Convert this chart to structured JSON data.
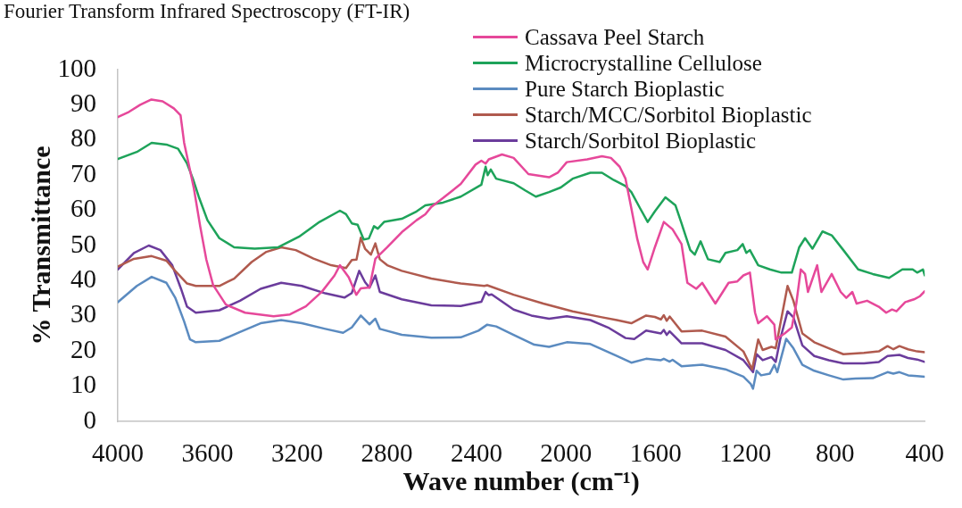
{
  "chart_data": {
    "type": "line",
    "title": "Fourier Transform Infrared Spectroscopy (FT-IR)",
    "xlabel": "Wave number (cm⁻¹)",
    "ylabel": "% Transmittance",
    "xlim": [
      4000,
      400
    ],
    "xticks": [
      4000,
      3600,
      3200,
      2800,
      2400,
      2000,
      1600,
      1200,
      800,
      400
    ],
    "ylim": [
      0,
      100
    ],
    "yticks": [
      0,
      10,
      20,
      30,
      40,
      50,
      60,
      70,
      80,
      90,
      100
    ],
    "legend": "top right",
    "series": [
      {
        "name": "Cassava Peel Starch",
        "color": "#e6489a",
        "x": [
          4000,
          3950,
          3900,
          3850,
          3800,
          3750,
          3720,
          3704,
          3661,
          3632,
          3605,
          3575,
          3518,
          3432,
          3305,
          3232,
          3161,
          3089,
          3033,
          3009,
          2970,
          2936,
          2916,
          2877,
          2851,
          2798,
          2733,
          2667,
          2628,
          2601,
          2549,
          2470,
          2404,
          2378,
          2359,
          2345,
          2286,
          2234,
          2168,
          2076,
          2037,
          1997,
          1906,
          1840,
          1800,
          1761,
          1735,
          1709,
          1683,
          1656,
          1636,
          1604,
          1564,
          1525,
          1485,
          1459,
          1419,
          1393,
          1334,
          1275,
          1236,
          1209,
          1180,
          1157,
          1143,
          1104,
          1071,
          1065,
          1025,
          993,
          973,
          953,
          934,
          921,
          880,
          861,
          815,
          775,
          750,
          723,
          704,
          657,
          605,
          572,
          546,
          526,
          487,
          448,
          421,
          400
        ],
        "values": [
          86.5,
          88,
          90,
          91.5,
          91,
          89,
          87,
          79.2,
          66.4,
          55.3,
          46,
          38.8,
          33.2,
          30.9,
          29.9,
          30.4,
          32.7,
          36.9,
          41.5,
          44.4,
          41,
          36,
          37.8,
          38.1,
          46.2,
          49.5,
          53.8,
          57.2,
          58.9,
          61,
          63.5,
          67.5,
          73,
          74.1,
          73.3,
          74.5,
          75.9,
          74.9,
          70.3,
          69.4,
          70.7,
          73.7,
          74.5,
          75.4,
          74.9,
          72.4,
          69,
          60.6,
          52,
          45.3,
          43.2,
          49.5,
          56.7,
          54.6,
          50.4,
          39.4,
          37.7,
          39.4,
          33.5,
          39.4,
          39.8,
          41.5,
          42.3,
          30.9,
          27.9,
          29.9,
          27.5,
          23.3,
          25,
          26.7,
          33.5,
          43.2,
          41.9,
          36.8,
          44.4,
          36.8,
          41.9,
          36.8,
          35.1,
          36.8,
          33.5,
          34.3,
          32.6,
          30.9,
          31.8,
          31.3,
          33.9,
          34.7,
          35.6,
          37
        ]
      },
      {
        "name": "Microcrystalline Cellulose",
        "color": "#1ea35a",
        "x": [
          4000,
          3915,
          3849,
          3783,
          3731,
          3691,
          3665,
          3639,
          3600,
          3547,
          3481,
          3389,
          3284,
          3192,
          3100,
          3009,
          2982,
          2956,
          2930,
          2903,
          2880,
          2857,
          2840,
          2812,
          2733,
          2667,
          2628,
          2549,
          2470,
          2378,
          2359,
          2350,
          2336,
          2312,
          2234,
          2181,
          2135,
          2076,
          2024,
          1971,
          1892,
          1840,
          1787,
          1735,
          1709,
          1670,
          1636,
          1604,
          1557,
          1512,
          1485,
          1446,
          1426,
          1400,
          1367,
          1315,
          1289,
          1236,
          1212,
          1196,
          1180,
          1143,
          1091,
          1039,
          993,
          960,
          934,
          901,
          856,
          815,
          763,
          697,
          632,
          559,
          500,
          454,
          434,
          408,
          400
        ],
        "values": [
          74.6,
          76.6,
          79.2,
          78.7,
          77.5,
          73.3,
          69,
          63.9,
          57.2,
          52.1,
          49.5,
          49.1,
          49.5,
          52.5,
          56.7,
          59.9,
          58.9,
          56.3,
          55.9,
          51.7,
          52,
          55.5,
          54.8,
          56.7,
          57.6,
          59.7,
          61.4,
          62.2,
          63.9,
          67.3,
          72.4,
          70,
          71.6,
          69,
          67.7,
          65.6,
          63.9,
          65.2,
          66.5,
          69,
          70.7,
          70.7,
          68.6,
          66.9,
          65.2,
          60.6,
          56.7,
          59.7,
          63.7,
          61.4,
          56.3,
          48.7,
          47.4,
          51.2,
          46.1,
          45.3,
          47.9,
          48.7,
          50.4,
          47.9,
          48.7,
          44.4,
          43.2,
          42.3,
          42.3,
          49.5,
          52.1,
          49.1,
          54,
          52.9,
          48.7,
          43.2,
          41.9,
          40.8,
          43.2,
          43.2,
          42.3,
          43.2,
          41.5
        ]
      },
      {
        "name": "Pure Starch Bioplastic",
        "color": "#5b8bc0",
        "x": [
          4000,
          3915,
          3849,
          3783,
          3744,
          3704,
          3678,
          3652,
          3547,
          3455,
          3363,
          3271,
          3179,
          3074,
          2995,
          2956,
          2916,
          2877,
          2851,
          2831,
          2733,
          2601,
          2470,
          2391,
          2352,
          2312,
          2234,
          2142,
          2076,
          1997,
          1892,
          1774,
          1709,
          1643,
          1577,
          1564,
          1538,
          1525,
          1485,
          1393,
          1289,
          1209,
          1176,
          1166,
          1150,
          1130,
          1091,
          1071,
          1058,
          1018,
          986,
          946,
          893,
          828,
          763,
          710,
          632,
          566,
          540,
          513,
          474,
          434,
          400
        ],
        "values": [
          33.9,
          38.5,
          41.1,
          39.4,
          35.2,
          28.4,
          23.3,
          22.5,
          22.9,
          25.4,
          27.9,
          28.8,
          27.9,
          26.3,
          25.2,
          26.7,
          30.1,
          27.6,
          29.2,
          26.3,
          24.6,
          23.8,
          23.9,
          25.8,
          27.5,
          27,
          24.6,
          21.8,
          21.2,
          22.5,
          22,
          18.6,
          16.7,
          17.8,
          17.4,
          17.8,
          17,
          17.5,
          15.7,
          16.1,
          14.8,
          12.7,
          10.6,
          9.3,
          14.4,
          13.1,
          13.6,
          16.1,
          14,
          23.5,
          20.8,
          16.1,
          14.4,
          13.1,
          11.9,
          12.2,
          12.3,
          14,
          13.6,
          14,
          13.1,
          12.9,
          12.7
        ]
      },
      {
        "name": "Starch/MCC/Sorbitol Bioplastic",
        "color": "#b05a4e",
        "x": [
          4000,
          3928,
          3849,
          3783,
          3744,
          3691,
          3652,
          3547,
          3481,
          3403,
          3337,
          3271,
          3206,
          3127,
          3048,
          2982,
          2956,
          2935,
          2916,
          2897,
          2871,
          2851,
          2831,
          2798,
          2733,
          2601,
          2470,
          2365,
          2352,
          2234,
          2102,
          1971,
          1840,
          1774,
          1709,
          1643,
          1604,
          1577,
          1564,
          1551,
          1538,
          1485,
          1393,
          1289,
          1209,
          1170,
          1143,
          1123,
          1084,
          1065,
          1045,
          1012,
          986,
          946,
          893,
          828,
          763,
          671,
          605,
          566,
          540,
          513,
          474,
          434,
          400
        ],
        "values": [
          44,
          46.2,
          47,
          45.7,
          42.8,
          39.2,
          38.5,
          38.5,
          40.6,
          45.3,
          48.2,
          49.5,
          48.7,
          46.3,
          44.4,
          43.6,
          45.9,
          46,
          52.2,
          49.1,
          47.4,
          50.6,
          46.1,
          44.4,
          42.8,
          40.6,
          39.2,
          38.5,
          38.7,
          36,
          33.5,
          31.3,
          29.6,
          28.8,
          27.9,
          30.1,
          29.7,
          29,
          30.2,
          28.6,
          29.8,
          25.6,
          25.8,
          24.1,
          19.9,
          14.8,
          23.3,
          20.3,
          21.2,
          20.8,
          27.5,
          38.5,
          34.3,
          25,
          22.5,
          20.8,
          19.1,
          19.5,
          19.9,
          21.4,
          20.5,
          21.4,
          20.5,
          19.9,
          19.7
        ]
      },
      {
        "name": "Starch/Sorbitol Bioplastic",
        "color": "#6b3c9c",
        "x": [
          4000,
          3928,
          3862,
          3810,
          3757,
          3718,
          3691,
          3652,
          3547,
          3455,
          3363,
          3271,
          3179,
          3074,
          2989,
          2956,
          2923,
          2897,
          2877,
          2851,
          2831,
          2733,
          2601,
          2470,
          2378,
          2359,
          2345,
          2332,
          2234,
          2155,
          2076,
          1997,
          1892,
          1813,
          1735,
          1696,
          1643,
          1577,
          1564,
          1551,
          1538,
          1485,
          1393,
          1289,
          1209,
          1166,
          1150,
          1123,
          1084,
          1065,
          1045,
          1012,
          986,
          946,
          893,
          828,
          763,
          671,
          605,
          566,
          513,
          474,
          434,
          400
        ],
        "values": [
          43.2,
          47.9,
          50,
          48.7,
          44.4,
          37.7,
          32.6,
          30.9,
          31.6,
          34.3,
          37.7,
          39.4,
          38.5,
          36.4,
          35.2,
          36.5,
          42.8,
          39.6,
          38,
          41.5,
          36.8,
          34.7,
          33,
          32.8,
          34,
          36.8,
          35.9,
          36.1,
          31.8,
          30.1,
          29.2,
          29.9,
          28.8,
          26.7,
          23.7,
          23.4,
          25.8,
          25,
          26,
          24.6,
          25.6,
          22.2,
          22.2,
          20.3,
          17.4,
          14,
          19.1,
          17.4,
          18.3,
          16.9,
          23.3,
          31.3,
          29.6,
          21.6,
          18.6,
          17.4,
          16.5,
          16.5,
          16.9,
          18.6,
          18.9,
          18,
          17.6,
          16.9
        ]
      }
    ]
  }
}
